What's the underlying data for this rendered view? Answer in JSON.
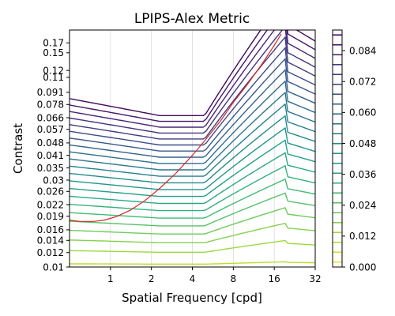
{
  "chart_data": {
    "type": "contour",
    "title": "LPIPS-Alex Metric",
    "xlabel": "Spatial Frequency [cpd]",
    "ylabel": "Contrast",
    "x_scale": "log2",
    "y_scale": "log",
    "xlim": [
      0.5,
      32
    ],
    "ylim": [
      0.01,
      0.2
    ],
    "x_ticks": [
      1,
      2,
      4,
      8,
      16,
      32
    ],
    "x_tick_labels": [
      "1",
      "2",
      "4",
      "8",
      "16",
      "32"
    ],
    "y_ticks": [
      0.01,
      0.012,
      0.014,
      0.016,
      0.019,
      0.022,
      0.026,
      0.03,
      0.035,
      0.041,
      0.048,
      0.057,
      0.066,
      0.078,
      0.091,
      0.11,
      0.12,
      0.15,
      0.17
    ],
    "y_tick_labels": [
      "0.01",
      "0.012",
      "0.014",
      "0.016",
      "0.019",
      "0.022",
      "0.026",
      "0.03",
      "0.035",
      "0.041",
      "0.048",
      "0.057",
      "0.066",
      "0.078",
      "0.091",
      "0.11",
      "0.12",
      "0.15",
      "0.17"
    ],
    "grid": "x-major",
    "colorbar": {
      "colormap": "viridis",
      "range": [
        0,
        0.092
      ],
      "levels": 24,
      "ticks": [
        0,
        0.012,
        0.024,
        0.036,
        0.048,
        0.06,
        0.072,
        0.084
      ],
      "tick_labels": [
        "0.000",
        "0.012",
        "0.024",
        "0.036",
        "0.048",
        "0.060",
        "0.072",
        "0.084"
      ]
    },
    "threshold_curve": {
      "color": "#d62728",
      "x": [
        0.5,
        0.6,
        0.75,
        0.9,
        1.1,
        1.4,
        1.8,
        2.3,
        3.0,
        4.0,
        5.0,
        6.5,
        8.0,
        10.0,
        13.0,
        16.0,
        18.0
      ],
      "y": [
        0.0181,
        0.0178,
        0.0178,
        0.0181,
        0.0189,
        0.0205,
        0.0232,
        0.027,
        0.0325,
        0.041,
        0.05,
        0.064,
        0.08,
        0.099,
        0.13,
        0.165,
        0.19
      ]
    }
  }
}
